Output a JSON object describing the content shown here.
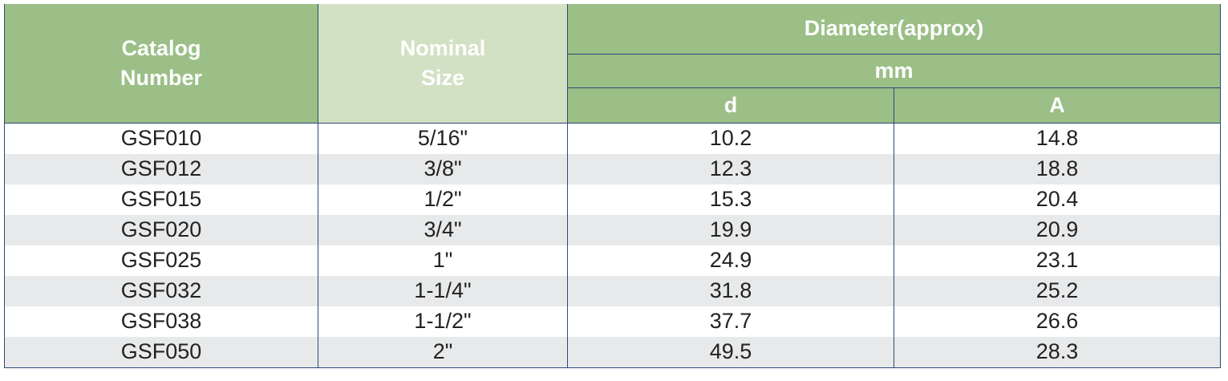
{
  "header": {
    "catalog_number": "Catalog Number",
    "nominal_size": "Nominal Size",
    "diameter": "Diameter(approx)",
    "unit": "mm",
    "d": "d",
    "a": "A"
  },
  "table": {
    "rows": [
      [
        "GSF010",
        "5/16\"",
        "10.2",
        "14.8"
      ],
      [
        "GSF012",
        "3/8\"",
        "12.3",
        "18.8"
      ],
      [
        "GSF015",
        "1/2\"",
        "15.3",
        "20.4"
      ],
      [
        "GSF020",
        "3/4\"",
        "19.9",
        "20.9"
      ],
      [
        "GSF025",
        "1\"",
        "24.9",
        "23.1"
      ],
      [
        "GSF032",
        "1-1/4\"",
        "31.8",
        "25.2"
      ],
      [
        "GSF038",
        "1-1/2\"",
        "37.7",
        "26.6"
      ],
      [
        "GSF050",
        "2\"",
        "49.5",
        "28.3"
      ]
    ]
  }
}
